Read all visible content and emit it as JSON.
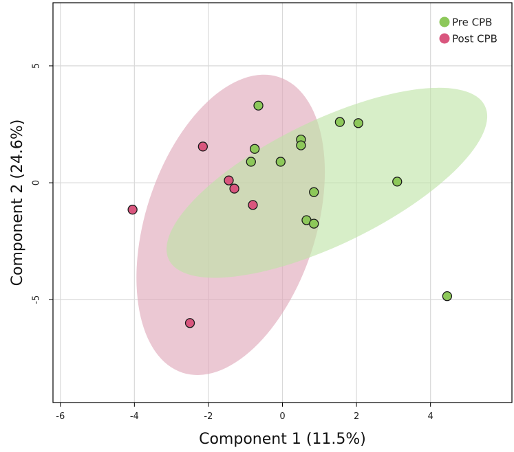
{
  "chart_data": {
    "type": "scatter",
    "xlabel": "Component 1 (11.5%)",
    "ylabel": "Component 2 (24.6%)",
    "xlim": [
      -6.2,
      6.2
    ],
    "ylim": [
      -9.4,
      7.7
    ],
    "xticks": [
      -6,
      -4,
      -2,
      0,
      2,
      4
    ],
    "yticks": [
      -5,
      0,
      5
    ],
    "grid": true,
    "legend_position": "top-right",
    "series": [
      {
        "name": "Pre CPB",
        "color": "#8dc85a",
        "ellipse_color": "#bfe3a6",
        "points": [
          {
            "x": -0.65,
            "y": 3.3
          },
          {
            "x": 1.55,
            "y": 2.6
          },
          {
            "x": 2.05,
            "y": 2.55
          },
          {
            "x": 0.5,
            "y": 1.85
          },
          {
            "x": 0.5,
            "y": 1.6
          },
          {
            "x": -0.75,
            "y": 1.45
          },
          {
            "x": -0.85,
            "y": 0.9
          },
          {
            "x": -0.05,
            "y": 0.9
          },
          {
            "x": 3.1,
            "y": 0.05
          },
          {
            "x": 0.85,
            "y": -0.4
          },
          {
            "x": 0.65,
            "y": -1.6
          },
          {
            "x": 0.85,
            "y": -1.75
          },
          {
            "x": 4.45,
            "y": -4.85
          }
        ],
        "ellipse": {
          "cx": 1.2,
          "cy": 0.0,
          "rx": 4.75,
          "ry": 2.65,
          "angle_deg": -26
        }
      },
      {
        "name": "Post CPB",
        "color": "#d9567e",
        "ellipse_color": "#dfa6b8",
        "points": [
          {
            "x": -2.15,
            "y": 1.55
          },
          {
            "x": -1.45,
            "y": 0.1
          },
          {
            "x": -1.3,
            "y": -0.25
          },
          {
            "x": -0.8,
            "y": -0.95
          },
          {
            "x": -4.05,
            "y": -1.15
          },
          {
            "x": -2.5,
            "y": -6.0
          }
        ],
        "ellipse": {
          "cx": -1.4,
          "cy": -1.8,
          "rx": 2.3,
          "ry": 6.65,
          "angle_deg": 18
        }
      }
    ]
  }
}
